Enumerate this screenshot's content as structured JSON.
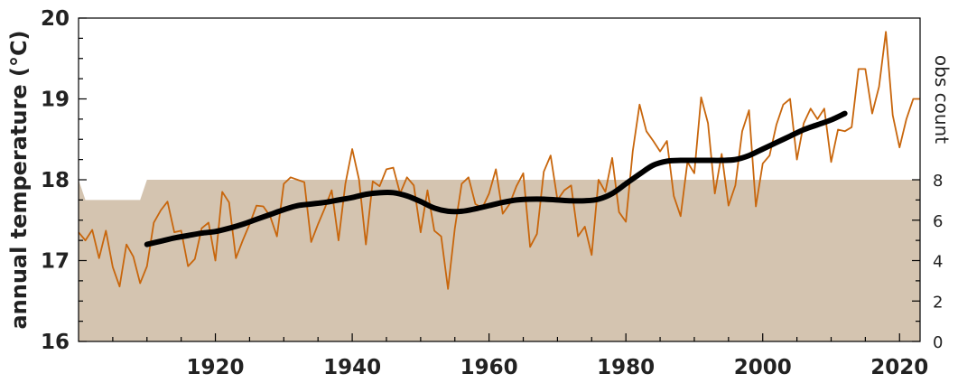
{
  "chart_data": {
    "type": "line",
    "title": "",
    "xlabel": "",
    "ylabel": "annual temperature (°C)",
    "y2label": "obs count",
    "xlim": [
      1900,
      2023
    ],
    "ylim": [
      16,
      20
    ],
    "y2lim": [
      0,
      16
    ],
    "x_ticks": [
      1920,
      1940,
      1960,
      1980,
      2000,
      2020
    ],
    "y_ticks": [
      16,
      17,
      18,
      19,
      20
    ],
    "y2_ticks": [
      0,
      2,
      4,
      6,
      8
    ],
    "grid": false,
    "legend": "none",
    "colors": {
      "annual": "#c8660c",
      "smooth": "#000000",
      "obs_fill": "#d4c4b0"
    },
    "series": [
      {
        "name": "annual temperature",
        "kind": "line",
        "axis": "left",
        "x": [
          1900,
          1901,
          1902,
          1903,
          1904,
          1905,
          1906,
          1907,
          1908,
          1909,
          1910,
          1911,
          1912,
          1913,
          1914,
          1915,
          1916,
          1917,
          1918,
          1919,
          1920,
          1921,
          1922,
          1923,
          1924,
          1925,
          1926,
          1927,
          1928,
          1929,
          1930,
          1931,
          1932,
          1933,
          1934,
          1935,
          1936,
          1937,
          1938,
          1939,
          1940,
          1941,
          1942,
          1943,
          1944,
          1945,
          1946,
          1947,
          1948,
          1949,
          1950,
          1951,
          1952,
          1953,
          1954,
          1955,
          1956,
          1957,
          1958,
          1959,
          1960,
          1961,
          1962,
          1963,
          1964,
          1965,
          1966,
          1967,
          1968,
          1969,
          1970,
          1971,
          1972,
          1973,
          1974,
          1975,
          1976,
          1977,
          1978,
          1979,
          1980,
          1981,
          1982,
          1983,
          1984,
          1985,
          1986,
          1987,
          1988,
          1989,
          1990,
          1991,
          1992,
          1993,
          1994,
          1995,
          1996,
          1997,
          1998,
          1999,
          2000,
          2001,
          2002,
          2003,
          2004,
          2005,
          2006,
          2007,
          2008,
          2009,
          2010,
          2011,
          2012,
          2013,
          2014,
          2015,
          2016,
          2017,
          2018,
          2019,
          2020,
          2021,
          2022,
          2023
        ],
        "values": [
          17.35,
          17.25,
          17.38,
          17.03,
          17.37,
          16.92,
          16.68,
          17.2,
          17.05,
          16.72,
          16.93,
          17.47,
          17.62,
          17.73,
          17.35,
          17.37,
          16.93,
          17.02,
          17.4,
          17.47,
          17.0,
          17.85,
          17.72,
          17.03,
          17.25,
          17.45,
          17.68,
          17.67,
          17.55,
          17.3,
          17.95,
          18.03,
          18.0,
          17.97,
          17.23,
          17.45,
          17.65,
          17.87,
          17.25,
          17.95,
          18.38,
          18.0,
          17.2,
          17.98,
          17.92,
          18.13,
          18.15,
          17.83,
          18.03,
          17.93,
          17.35,
          17.87,
          17.37,
          17.3,
          16.65,
          17.4,
          17.95,
          18.03,
          17.7,
          17.65,
          17.83,
          18.13,
          17.58,
          17.7,
          17.92,
          18.08,
          17.17,
          17.33,
          18.1,
          18.3,
          17.75,
          17.87,
          17.93,
          17.3,
          17.42,
          17.07,
          18.0,
          17.85,
          18.27,
          17.6,
          17.48,
          18.35,
          18.93,
          18.6,
          18.48,
          18.35,
          18.48,
          17.8,
          17.55,
          18.22,
          18.08,
          19.02,
          18.7,
          17.83,
          18.32,
          17.68,
          17.93,
          18.6,
          18.86,
          17.67,
          18.2,
          18.3,
          18.68,
          18.93,
          19.0,
          18.25,
          18.7,
          18.88,
          18.75,
          18.88,
          18.22,
          18.62,
          18.6,
          18.65,
          19.37,
          19.37,
          18.82,
          19.15,
          19.83,
          18.8,
          18.4,
          18.75,
          19.0,
          19.0
        ]
      },
      {
        "name": "smoothed trend",
        "kind": "line",
        "axis": "left",
        "x": [
          1910,
          1912,
          1914,
          1916,
          1918,
          1920,
          1922,
          1924,
          1926,
          1928,
          1930,
          1932,
          1934,
          1936,
          1938,
          1940,
          1942,
          1944,
          1946,
          1948,
          1950,
          1952,
          1954,
          1956,
          1958,
          1960,
          1962,
          1964,
          1966,
          1968,
          1970,
          1972,
          1974,
          1976,
          1978,
          1980,
          1982,
          1984,
          1986,
          1988,
          1990,
          1992,
          1994,
          1996,
          1998,
          2000,
          2002,
          2004,
          2006,
          2008,
          2010,
          2012
        ],
        "values": [
          17.2,
          17.24,
          17.28,
          17.31,
          17.34,
          17.36,
          17.4,
          17.45,
          17.51,
          17.57,
          17.63,
          17.68,
          17.7,
          17.72,
          17.75,
          17.78,
          17.82,
          17.84,
          17.84,
          17.8,
          17.73,
          17.65,
          17.61,
          17.61,
          17.64,
          17.68,
          17.72,
          17.75,
          17.76,
          17.76,
          17.75,
          17.74,
          17.74,
          17.76,
          17.83,
          17.95,
          18.07,
          18.18,
          18.23,
          18.24,
          18.24,
          18.24,
          18.24,
          18.25,
          18.3,
          18.38,
          18.46,
          18.54,
          18.62,
          18.68,
          18.74,
          18.82
        ]
      },
      {
        "name": "obs count",
        "kind": "area",
        "axis": "right",
        "x": [
          1900,
          1901,
          1902,
          1903,
          1904,
          1905,
          1906,
          1907,
          1908,
          1909,
          1910,
          1911,
          1912,
          1913,
          1914,
          1915,
          1916,
          1917,
          1918,
          1919,
          1920,
          1921,
          1922,
          1923,
          1924,
          1925,
          1926,
          1927,
          1928,
          1929,
          1930,
          1931,
          1932,
          1933,
          1934,
          1935,
          1936,
          1937,
          1938,
          1939,
          1940,
          1941,
          1942,
          1943,
          1944,
          1945,
          1946,
          1947,
          1948,
          1949,
          1950,
          1951,
          1952,
          1953,
          1954,
          1955,
          1956,
          1957,
          1958,
          1959,
          1960,
          1961,
          1962,
          1963,
          1964,
          1965,
          1966,
          1967,
          1968,
          1969,
          1970,
          1971,
          1972,
          1973,
          1974,
          1975,
          1976,
          1977,
          1978,
          1979,
          1980,
          1981,
          1982,
          1983,
          1984,
          1985,
          1986,
          1987,
          1988,
          1989,
          1990,
          1991,
          1992,
          1993,
          1994,
          1995,
          1996,
          1997,
          1998,
          1999,
          2000,
          2001,
          2002,
          2003,
          2004,
          2005,
          2006,
          2007,
          2008,
          2009,
          2010,
          2011,
          2012,
          2013,
          2014,
          2015,
          2016,
          2017,
          2018,
          2019,
          2020,
          2021,
          2022,
          2023
        ],
        "values": [
          8,
          7,
          7,
          7,
          7,
          7,
          7,
          7,
          7,
          7,
          8,
          8,
          8,
          8,
          8,
          8,
          8,
          8,
          8,
          8,
          8,
          8,
          8,
          8,
          8,
          8,
          8,
          8,
          8,
          8,
          8,
          8,
          8,
          8,
          8,
          8,
          8,
          8,
          8,
          8,
          8,
          8,
          8,
          8,
          8,
          8,
          8,
          8,
          8,
          8,
          8,
          8,
          8,
          8,
          8,
          8,
          8,
          8,
          8,
          8,
          8,
          8,
          8,
          8,
          8,
          8,
          8,
          8,
          8,
          8,
          8,
          8,
          8,
          8,
          8,
          8,
          8,
          8,
          8,
          8,
          8,
          8,
          8,
          8,
          8,
          8,
          8,
          8,
          8,
          8,
          8,
          8,
          8,
          8,
          8,
          8,
          8,
          8,
          8,
          8,
          8,
          8,
          8,
          8,
          8,
          8,
          8,
          8,
          8,
          8,
          8,
          8,
          8,
          8,
          8,
          8,
          8,
          8,
          8,
          8,
          8,
          8,
          8,
          8
        ]
      }
    ]
  }
}
